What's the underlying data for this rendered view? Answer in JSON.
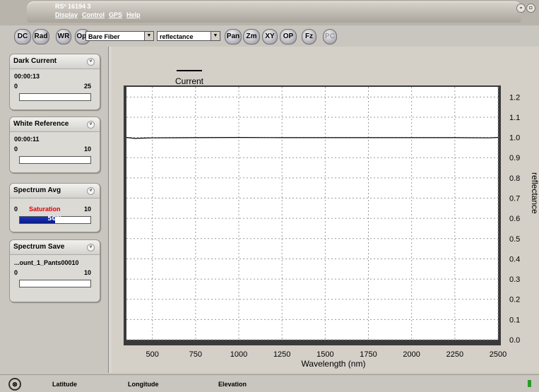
{
  "window": {
    "app_title": "RS³  16194 3",
    "menu": [
      "Display",
      "Control",
      "GPS",
      "Help"
    ]
  },
  "toolbar": {
    "buttons": [
      "DC",
      "Rad",
      "WR",
      "Opt"
    ],
    "fiber_select": "Bare Fiber",
    "mode_select": "reflectance",
    "view_buttons": [
      "Pan",
      "Zm",
      "XY",
      "OP",
      "Fz",
      "PC"
    ]
  },
  "panels": {
    "dark_current": {
      "title": "Dark Current",
      "time": "00:00:13",
      "min": "0",
      "max": "25"
    },
    "white_reference": {
      "title": "White Reference",
      "time": "00:00:11",
      "min": "0",
      "max": "10"
    },
    "spectrum_avg": {
      "title": "Spectrum Avg",
      "min": "0",
      "status": "Saturation",
      "max": "10",
      "progress_label": "50%",
      "progress": 0.5
    },
    "spectrum_save": {
      "title": "Spectrum Save",
      "filename": "...ount_1_Pants00010",
      "min": "0",
      "max": "10"
    }
  },
  "status": {
    "latitude": "Latitude",
    "longitude": "Longitude",
    "elevation": "Elevation"
  },
  "colors": {
    "progress": "#1a33c0",
    "saturation": "#e00000",
    "indicator": "#2a9a2a"
  },
  "chart_data": {
    "type": "line",
    "legend": [
      "Current"
    ],
    "xlabel": "Wavelength (nm)",
    "ylabel": "reflectance",
    "xlim": [
      350,
      2500
    ],
    "ylim": [
      0.0,
      1.25
    ],
    "xticks": [
      500,
      750,
      1000,
      1250,
      1500,
      1750,
      2000,
      2250,
      2500
    ],
    "yticks": [
      0.0,
      0.1,
      0.2,
      0.3,
      0.4,
      0.5,
      0.6,
      0.7,
      0.8,
      0.9,
      1.0,
      1.1,
      1.2
    ],
    "grid": true,
    "series": [
      {
        "name": "Current",
        "x": [
          350,
          400,
          450,
          500,
          750,
          1000,
          1250,
          1500,
          1750,
          2000,
          2250,
          2450,
          2500
        ],
        "y": [
          1.0,
          0.995,
          0.997,
          0.998,
          0.999,
          1.0,
          0.999,
          0.999,
          0.999,
          0.999,
          0.999,
          0.998,
          1.0
        ]
      }
    ]
  }
}
